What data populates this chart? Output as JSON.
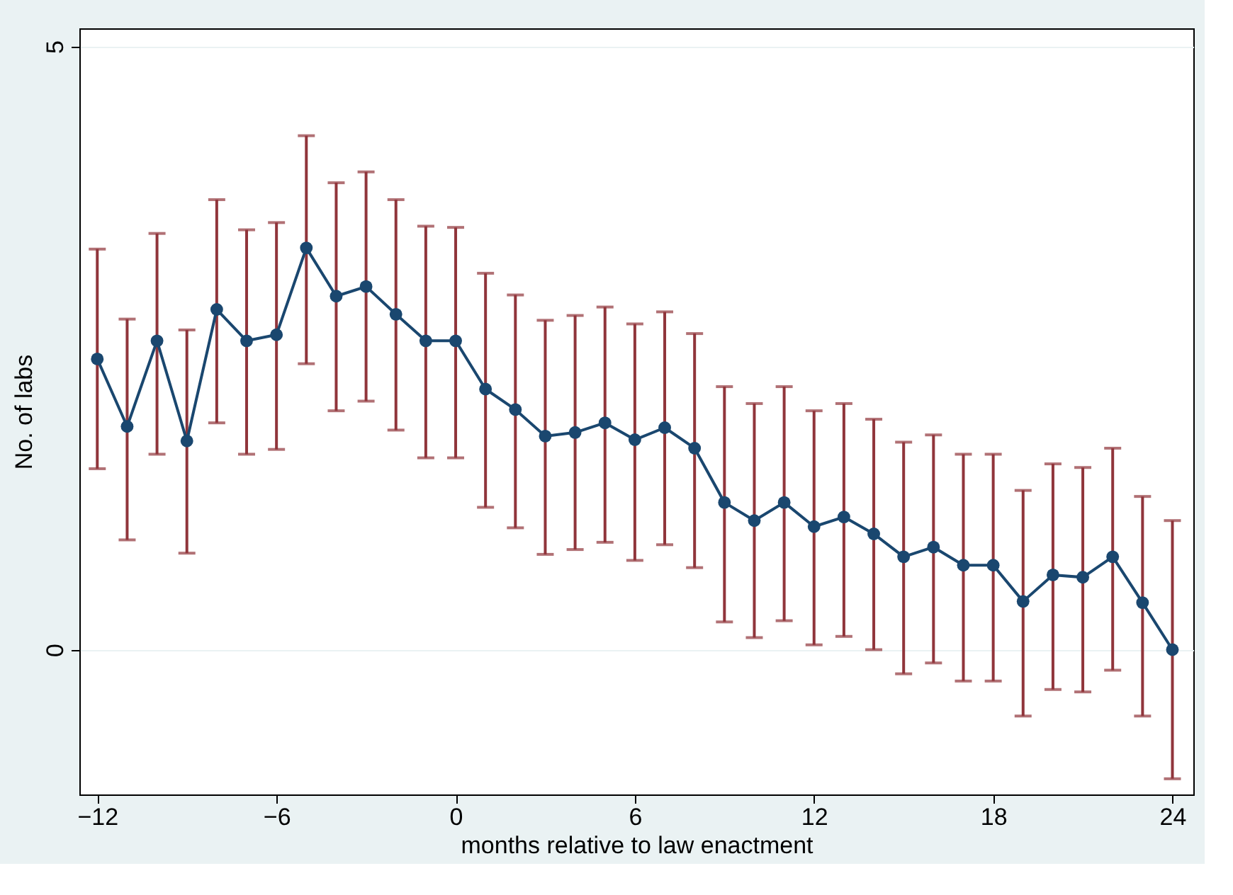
{
  "chart_data": {
    "type": "line",
    "xlabel": "months relative to law enactment",
    "ylabel": "No. of labs",
    "x": [
      -12,
      -11,
      -10,
      -9,
      -8,
      -7,
      -6,
      -5,
      -4,
      -3,
      -2,
      -1,
      0,
      1,
      2,
      3,
      4,
      5,
      6,
      7,
      8,
      9,
      10,
      11,
      12,
      13,
      14,
      15,
      16,
      17,
      18,
      19,
      20,
      21,
      22,
      23,
      24
    ],
    "series": [
      {
        "color": "#1a476f",
        "values": [
          2.41,
          1.85,
          2.56,
          1.73,
          2.82,
          2.56,
          2.61,
          3.33,
          2.93,
          3.01,
          2.78,
          2.56,
          2.56,
          2.16,
          1.99,
          1.77,
          1.8,
          1.88,
          1.74,
          1.84,
          1.67,
          1.22,
          1.07,
          1.22,
          1.02,
          1.1,
          0.96,
          0.77,
          0.85,
          0.7,
          0.7,
          0.4,
          0.62,
          0.6,
          0.77,
          0.39,
          0.0
        ],
        "errors": [
          [
            1.5,
            3.32
          ],
          [
            0.91,
            2.74
          ],
          [
            1.62,
            3.45
          ],
          [
            0.8,
            2.65
          ],
          [
            1.88,
            3.73
          ],
          [
            1.62,
            3.48
          ],
          [
            1.66,
            3.54
          ],
          [
            2.37,
            4.26
          ],
          [
            1.98,
            3.87
          ],
          [
            2.06,
            3.96
          ],
          [
            1.82,
            3.73
          ],
          [
            1.59,
            3.51
          ],
          [
            1.59,
            3.5
          ],
          [
            1.18,
            3.12
          ],
          [
            1.01,
            2.94
          ],
          [
            0.79,
            2.73
          ],
          [
            0.83,
            2.77
          ],
          [
            0.89,
            2.84
          ],
          [
            0.74,
            2.7
          ],
          [
            0.87,
            2.8
          ],
          [
            0.68,
            2.62
          ],
          [
            0.23,
            2.18
          ],
          [
            0.1,
            2.04
          ],
          [
            0.24,
            2.18
          ],
          [
            0.04,
            1.98
          ],
          [
            0.11,
            2.04
          ],
          [
            0.0,
            1.91
          ],
          [
            -0.2,
            1.72
          ],
          [
            -0.11,
            1.78
          ],
          [
            -0.26,
            1.62
          ],
          [
            -0.26,
            1.62
          ],
          [
            -0.55,
            1.32
          ],
          [
            -0.33,
            1.54
          ],
          [
            -0.35,
            1.51
          ],
          [
            -0.17,
            1.67
          ],
          [
            -0.55,
            1.27
          ],
          [
            -1.07,
            1.07
          ]
        ]
      }
    ],
    "marker": "circle",
    "line_style": "solid",
    "xlim": [
      -12.6,
      24.7
    ],
    "xticks": [
      -12,
      -6,
      0,
      6,
      12,
      18,
      24
    ],
    "ylim": [
      -1.2,
      5.15
    ],
    "yticks": [
      0,
      5
    ],
    "grid": "y"
  }
}
